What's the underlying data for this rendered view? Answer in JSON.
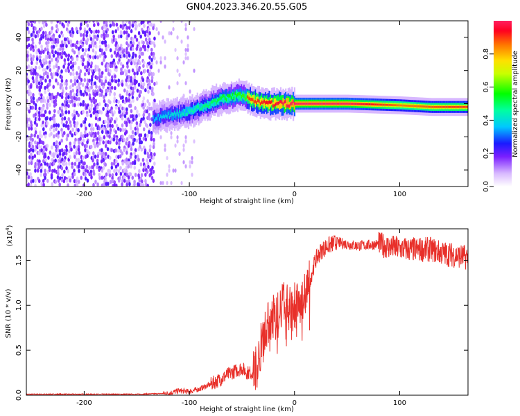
{
  "title": "GN04.2023.346.20.55.G05",
  "chart_data": [
    {
      "type": "heatmap",
      "xlabel": "Height of straight line (km)",
      "ylabel": "Frequency (Hz)",
      "xlim": [
        -255,
        165
      ],
      "ylim": [
        -50,
        50
      ],
      "xticks": [
        -200,
        -100,
        0,
        100
      ],
      "yticks": [
        -40,
        -20,
        0,
        20,
        40
      ],
      "colorbar": {
        "label": "Normalized spectral amplitude",
        "range": [
          0.0,
          1.0
        ],
        "ticks": [
          0.0,
          0.2,
          0.4,
          0.6,
          0.8
        ]
      },
      "ridge": {
        "description_points": [
          [
            -135,
            -9
          ],
          [
            -120,
            -7
          ],
          [
            -100,
            -5
          ],
          [
            -85,
            -1
          ],
          [
            -70,
            3
          ],
          [
            -55,
            5
          ],
          [
            -45,
            4
          ],
          [
            -35,
            1
          ],
          [
            -20,
            0
          ],
          [
            0,
            0
          ],
          [
            50,
            0
          ],
          [
            100,
            -1
          ],
          [
            130,
            -2
          ],
          [
            165,
            -2
          ]
        ],
        "peak_amplitude_points": [
          [
            -40,
            0.9
          ],
          [
            0,
            1.0
          ],
          [
            50,
            1.0
          ],
          [
            100,
            0.85
          ],
          [
            150,
            0.9
          ]
        ]
      },
      "noise_region": {
        "x_range": [
          -255,
          -133
        ],
        "y_range": [
          -50,
          50
        ]
      }
    },
    {
      "type": "line",
      "xlabel": "Height of straight line (km)",
      "ylabel": "SNR (10 * v/v)",
      "y_multiplier": "(x10",
      "y_multiplier_exp": "4",
      "y_multiplier_close": ")",
      "xlim": [
        -255,
        165
      ],
      "ylim": [
        0,
        1.85
      ],
      "xticks": [
        -200,
        -100,
        0,
        100
      ],
      "yticks": [
        0.0,
        0.5,
        1.0,
        1.5
      ],
      "ytick_labels": [
        "0.0",
        "0.5",
        "1.0",
        "1.5"
      ],
      "color": "#e8302a",
      "x": [
        -255,
        -200,
        -150,
        -120,
        -110,
        -100,
        -90,
        -80,
        -70,
        -60,
        -50,
        -45,
        -40,
        -35,
        -30,
        -25,
        -20,
        -15,
        -10,
        -5,
        0,
        5,
        10,
        15,
        20,
        25,
        30,
        40,
        50,
        60,
        70,
        80,
        90,
        100,
        110,
        120,
        130,
        140,
        150,
        160,
        165
      ],
      "y": [
        0.01,
        0.01,
        0.01,
        0.02,
        0.05,
        0.04,
        0.07,
        0.12,
        0.18,
        0.25,
        0.3,
        0.25,
        0.25,
        0.35,
        0.7,
        0.8,
        0.9,
        0.9,
        1.1,
        0.95,
        1.05,
        1.0,
        1.15,
        1.3,
        1.5,
        1.6,
        1.65,
        1.7,
        1.68,
        1.66,
        1.67,
        1.68,
        1.65,
        1.63,
        1.62,
        1.62,
        1.62,
        1.58,
        1.56,
        1.54,
        1.53
      ]
    }
  ]
}
